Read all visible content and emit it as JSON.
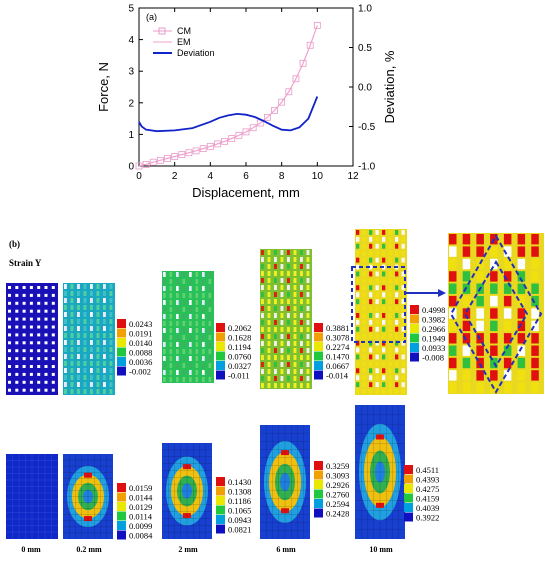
{
  "panel_a": {
    "label": "(a)",
    "xlabel": "Displacement, mm",
    "ylabel_left": "Force, N",
    "ylabel_right": "Deviation, %",
    "x_ticks": [
      "0",
      "2",
      "4",
      "6",
      "8",
      "10",
      "12"
    ],
    "y_left_ticks": [
      "0",
      "1",
      "2",
      "3",
      "4",
      "5"
    ],
    "y_right_ticks": [
      "-1.0",
      "-0.5",
      "0.0",
      "0.5",
      "1.0"
    ],
    "legend": [
      "CM",
      "EM",
      "Deviation"
    ]
  },
  "panel_b": {
    "label": "(b)",
    "title": "Strain Y",
    "scales_top": [
      [
        "0.0243",
        "0.0191",
        "0.0140",
        "0.0088",
        "0.0036",
        "-0.002"
      ],
      [
        "0.2062",
        "0.1628",
        "0.1194",
        "0.0760",
        "0.0327",
        "-0.011"
      ],
      [
        "0.3881",
        "0.3078",
        "0.2274",
        "0.1470",
        "0.0667",
        "-0.014"
      ],
      [
        "0.4998",
        "0.3982",
        "0.2966",
        "0.1949",
        "0.0933",
        "-0.008"
      ]
    ],
    "scales_bottom": [
      [
        "0.0159",
        "0.0144",
        "0.0129",
        "0.0114",
        "0.0099",
        "0.0084"
      ],
      [
        "0.1430",
        "0.1308",
        "0.1186",
        "0.1065",
        "0.0943",
        "0.0821"
      ],
      [
        "0.3259",
        "0.3093",
        "0.2926",
        "0.2760",
        "0.2594",
        "0.2428"
      ],
      [
        "0.4511",
        "0.4393",
        "0.4275",
        "0.4159",
        "0.4039",
        "0.3922"
      ]
    ],
    "step_labels": [
      "0 mm",
      "0.2 mm",
      "2 mm",
      "6 mm",
      "10 mm"
    ]
  },
  "colors": {
    "cm": "#e89ac8",
    "em": "#f0a0cc",
    "deviation": "#1024c8",
    "legend_scale": [
      "#e01010",
      "#f0a000",
      "#e8e800",
      "#20c840",
      "#00a0e0",
      "#1010c0"
    ]
  },
  "chart_data": {
    "type": "line",
    "xlabel": "Displacement, mm",
    "ylabel": "Force, N",
    "ylabel_right": "Deviation, %",
    "xlim": [
      0,
      12
    ],
    "ylim": [
      0,
      5
    ],
    "ylim_right": [
      -1,
      1
    ],
    "series": [
      {
        "name": "CM",
        "axis": "left",
        "marker": "square",
        "x": [
          0,
          0.4,
          0.8,
          1.2,
          1.6,
          2.0,
          2.4,
          2.8,
          3.2,
          3.6,
          4.0,
          4.4,
          4.8,
          5.2,
          5.6,
          6.0,
          6.4,
          6.8,
          7.2,
          7.6,
          8.0,
          8.4,
          8.8,
          9.2,
          9.6,
          10.0
        ],
        "y": [
          0.0,
          0.05,
          0.12,
          0.18,
          0.24,
          0.3,
          0.36,
          0.42,
          0.48,
          0.55,
          0.62,
          0.7,
          0.78,
          0.87,
          0.97,
          1.08,
          1.21,
          1.36,
          1.54,
          1.76,
          2.02,
          2.35,
          2.76,
          3.25,
          3.82,
          4.45
        ]
      },
      {
        "name": "EM",
        "axis": "left",
        "x": [
          0,
          0.4,
          0.8,
          1.2,
          1.6,
          2.0,
          2.4,
          2.8,
          3.2,
          3.6,
          4.0,
          4.4,
          4.8,
          5.2,
          5.6,
          6.0,
          6.4,
          6.8,
          7.2,
          7.6,
          8.0,
          8.4,
          8.8,
          9.2,
          9.6,
          10.0
        ],
        "y": [
          0.0,
          0.05,
          0.12,
          0.18,
          0.24,
          0.3,
          0.36,
          0.42,
          0.48,
          0.55,
          0.62,
          0.7,
          0.78,
          0.87,
          0.97,
          1.08,
          1.21,
          1.36,
          1.54,
          1.76,
          2.02,
          2.35,
          2.76,
          3.25,
          3.82,
          4.45
        ]
      },
      {
        "name": "Deviation",
        "axis": "right",
        "x": [
          0,
          0.15,
          0.4,
          1,
          2,
          3,
          4,
          4.5,
          5,
          5.5,
          6,
          6.5,
          7,
          7.5,
          8,
          8.5,
          9,
          9.5,
          10
        ],
        "y": [
          -0.44,
          -0.5,
          -0.54,
          -0.56,
          -0.55,
          -0.52,
          -0.44,
          -0.39,
          -0.36,
          -0.34,
          -0.35,
          -0.38,
          -0.43,
          -0.49,
          -0.54,
          -0.55,
          -0.51,
          -0.4,
          -0.12
        ]
      }
    ]
  }
}
